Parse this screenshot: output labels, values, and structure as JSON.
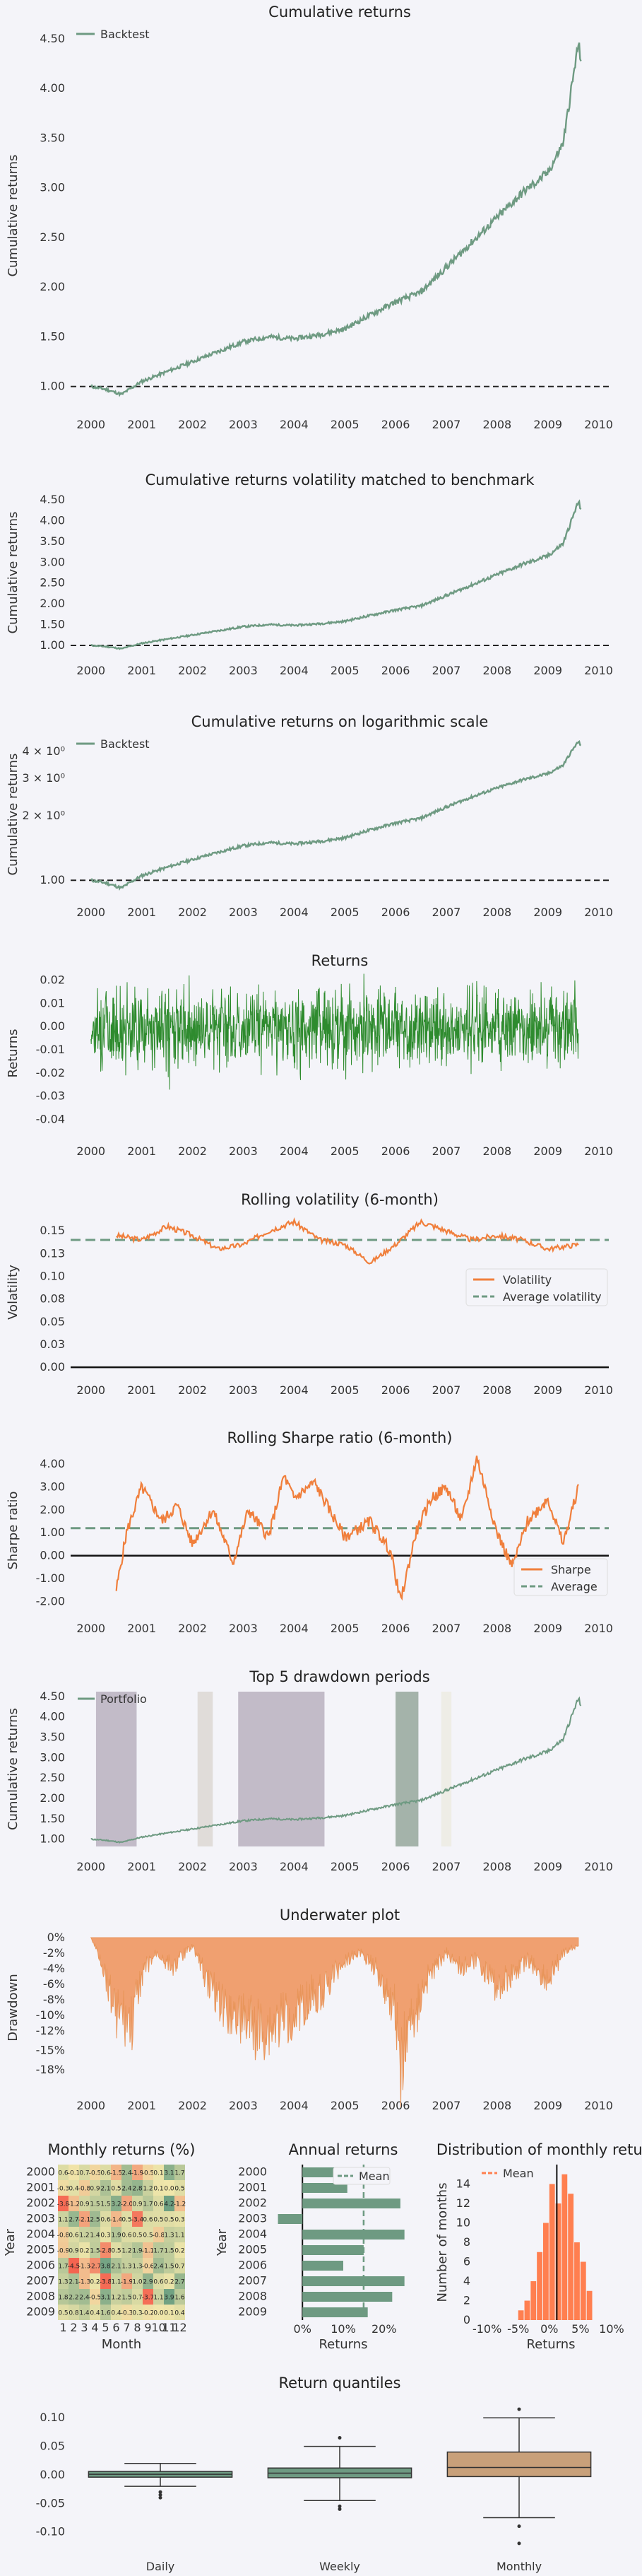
{
  "chart_data": [
    {
      "id": "cum",
      "type": "line",
      "title": "Cumulative returns",
      "ylabel": "Cumulative returns",
      "xlim": [
        1999.6,
        2010.2
      ],
      "ylim": [
        0.82,
        4.62
      ],
      "yticks": [
        "1.00",
        "1.50",
        "2.00",
        "2.50",
        "3.00",
        "3.50",
        "4.00",
        "4.50"
      ],
      "ytick_values": [
        1.0,
        1.5,
        2.0,
        2.5,
        3.0,
        3.5,
        4.0,
        4.5
      ],
      "xticks": [
        "2000",
        "2001",
        "2002",
        "2003",
        "2004",
        "2005",
        "2006",
        "2007",
        "2008",
        "2009",
        "2010"
      ],
      "legend": [
        "Backtest"
      ],
      "legend_position": "top-left",
      "baseline": 1.0,
      "color": "#6e9a82",
      "series_x": [
        2000.0,
        2000.3,
        2000.6,
        2001.0,
        2001.5,
        2002.0,
        2002.5,
        2003.0,
        2003.5,
        2004.0,
        2004.5,
        2005.0,
        2005.5,
        2006.0,
        2006.5,
        2007.0,
        2007.5,
        2008.0,
        2008.5,
        2009.0,
        2009.3,
        2009.6,
        2009.65
      ],
      "series_y": [
        1.0,
        0.97,
        0.92,
        1.05,
        1.15,
        1.25,
        1.35,
        1.45,
        1.5,
        1.48,
        1.52,
        1.58,
        1.72,
        1.85,
        1.95,
        2.2,
        2.45,
        2.7,
        2.95,
        3.15,
        3.45,
        4.45,
        4.3
      ]
    },
    {
      "id": "volm",
      "type": "line",
      "title": "Cumulative returns volatility matched to benchmark",
      "ylabel": "Cumulative returns",
      "xlim": [
        1999.6,
        2010.2
      ],
      "ylim": [
        0.88,
        4.62
      ],
      "yticks": [
        "1.00",
        "1.50",
        "2.00",
        "2.50",
        "3.00",
        "3.50",
        "4.00",
        "4.50"
      ],
      "ytick_values": [
        1.0,
        1.5,
        2.0,
        2.5,
        3.0,
        3.5,
        4.0,
        4.5
      ],
      "xticks": [
        "2000",
        "2001",
        "2002",
        "2003",
        "2004",
        "2005",
        "2006",
        "2007",
        "2008",
        "2009",
        "2010"
      ],
      "baseline": 1.0,
      "color": "#6e9a82"
    },
    {
      "id": "log",
      "type": "line",
      "title": "Cumulative returns on logarithmic scale",
      "ylabel": "Cumulative returns",
      "xlim": [
        1999.6,
        2010.2
      ],
      "log_scale": true,
      "ylim": [
        0.88,
        4.7
      ],
      "yticks": [
        "1.00",
        "2 × 10⁰",
        "3 × 10⁰",
        "4 × 10⁰"
      ],
      "ytick_values": [
        1.0,
        2.0,
        3.0,
        4.0
      ],
      "xticks": [
        "2000",
        "2001",
        "2002",
        "2003",
        "2004",
        "2005",
        "2006",
        "2007",
        "2008",
        "2009",
        "2010"
      ],
      "legend": [
        "Backtest"
      ],
      "legend_position": "top-left",
      "baseline": 1.0,
      "color": "#6e9a82"
    },
    {
      "id": "ret",
      "type": "line",
      "title": "Returns",
      "ylabel": "Returns",
      "xlim": [
        1999.6,
        2010.2
      ],
      "ylim": [
        -0.045,
        0.022
      ],
      "yticks": [
        "0.02",
        "0.01",
        "0.00",
        "-0.01",
        "-0.02",
        "-0.03",
        "-0.04"
      ],
      "ytick_values": [
        0.02,
        0.01,
        0.0,
        -0.01,
        -0.02,
        -0.03,
        -0.04
      ],
      "xticks": [
        "2000",
        "2001",
        "2002",
        "2003",
        "2004",
        "2005",
        "2006",
        "2007",
        "2008",
        "2009",
        "2010"
      ],
      "color": "#2e8b2e"
    },
    {
      "id": "rvol",
      "type": "line",
      "title": "Rolling volatility (6-month)",
      "ylabel": "Volatility",
      "xlim": [
        1999.6,
        2010.2
      ],
      "ylim": [
        -0.003,
        0.168
      ],
      "yticks": [
        "0.15",
        "0.13",
        "0.10",
        "0.08",
        "0.05",
        "0.03",
        "0.00"
      ],
      "ytick_values": [
        0.15,
        0.125,
        0.1,
        0.075,
        0.05,
        0.025,
        0.0
      ],
      "xticks": [
        "2000",
        "2001",
        "2002",
        "2003",
        "2004",
        "2005",
        "2006",
        "2007",
        "2008",
        "2009",
        "2010"
      ],
      "legend": [
        "Volatility",
        "Average volatility"
      ],
      "legend_position": "lower-right",
      "average": 0.14,
      "series_x": [
        2000.5,
        2001.0,
        2001.5,
        2002.0,
        2002.5,
        2003.0,
        2003.5,
        2004.0,
        2004.5,
        2005.0,
        2005.5,
        2006.0,
        2006.5,
        2007.0,
        2007.5,
        2008.0,
        2008.5,
        2009.0,
        2009.6
      ],
      "series_y": [
        0.145,
        0.14,
        0.155,
        0.145,
        0.13,
        0.135,
        0.15,
        0.16,
        0.14,
        0.135,
        0.115,
        0.135,
        0.16,
        0.15,
        0.14,
        0.145,
        0.14,
        0.13,
        0.135
      ],
      "color": "#f07f3c"
    },
    {
      "id": "rsh",
      "type": "line",
      "title": "Rolling Sharpe ratio (6-month)",
      "ylabel": "Sharpe ratio",
      "xlim": [
        1999.6,
        2010.2
      ],
      "ylim": [
        -2.3,
        4.5
      ],
      "yticks": [
        "4.00",
        "3.00",
        "2.00",
        "1.00",
        "0.00",
        "-1.00",
        "-2.00"
      ],
      "ytick_values": [
        4,
        3,
        2,
        1,
        0,
        -1,
        -2
      ],
      "xticks": [
        "2000",
        "2001",
        "2002",
        "2003",
        "2004",
        "2005",
        "2006",
        "2007",
        "2008",
        "2009",
        "2010"
      ],
      "legend": [
        "Sharpe",
        "Average"
      ],
      "legend_position": "lower-right",
      "average": 1.2,
      "series_x": [
        2000.5,
        2000.7,
        2001.0,
        2001.4,
        2001.7,
        2002.0,
        2002.4,
        2002.8,
        2003.1,
        2003.5,
        2003.8,
        2004.0,
        2004.4,
        2004.7,
        2005.0,
        2005.5,
        2005.9,
        2006.1,
        2006.4,
        2006.7,
        2007.0,
        2007.3,
        2007.6,
        2008.0,
        2008.3,
        2008.6,
        2009.0,
        2009.3,
        2009.6
      ],
      "series_y": [
        -1.5,
        1.0,
        3.0,
        1.5,
        2.2,
        0.5,
        2.0,
        -0.3,
        2.0,
        0.8,
        3.5,
        2.5,
        3.2,
        2.0,
        0.8,
        1.5,
        0.2,
        -2.0,
        1.0,
        2.5,
        3.0,
        1.5,
        4.3,
        1.0,
        -0.5,
        1.5,
        2.5,
        0.5,
        3.0
      ],
      "color": "#f07f3c"
    },
    {
      "id": "dd",
      "type": "line",
      "title": "Top 5 drawdown periods",
      "ylabel": "Cumulative returns",
      "xlim": [
        1999.6,
        2010.2
      ],
      "ylim": [
        0.82,
        4.62
      ],
      "yticks": [
        "1.00",
        "1.50",
        "2.00",
        "2.50",
        "3.00",
        "3.50",
        "4.00",
        "4.50"
      ],
      "ytick_values": [
        1.0,
        1.5,
        2.0,
        2.5,
        3.0,
        3.5,
        4.0,
        4.5
      ],
      "xticks": [
        "2000",
        "2001",
        "2002",
        "2003",
        "2004",
        "2005",
        "2006",
        "2007",
        "2008",
        "2009",
        "2010"
      ],
      "legend": [
        "Portfolio"
      ],
      "legend_position": "top-left",
      "drawdown_periods": [
        {
          "start": 2000.1,
          "end": 2000.9,
          "color": "#b8b0c0"
        },
        {
          "start": 2002.1,
          "end": 2002.4,
          "color": "#dcd7d3"
        },
        {
          "start": 2002.9,
          "end": 2004.6,
          "color": "#b8b0c0"
        },
        {
          "start": 2006.0,
          "end": 2006.45,
          "color": "#95a79c"
        },
        {
          "start": 2006.9,
          "end": 2007.1,
          "color": "#ecebe3"
        }
      ],
      "color": "#6e9a82"
    },
    {
      "id": "uw",
      "type": "area",
      "title": "Underwater plot",
      "ylabel": "Drawdown",
      "xlim": [
        1999.6,
        2010.2
      ],
      "ylim": [
        -19,
        1
      ],
      "yticks": [
        "0%",
        "-2%",
        "-4%",
        "-6%",
        "-8%",
        "-10%",
        "-12%",
        "-15%",
        "-18%"
      ],
      "ytick_values": [
        0,
        -2,
        -4,
        -6,
        -8,
        -10,
        -12,
        -14.5,
        -17
      ],
      "xticks": [
        "2000",
        "2001",
        "2002",
        "2003",
        "2004",
        "2005",
        "2006",
        "2007",
        "2008",
        "2009",
        "2010"
      ],
      "series_x": [
        2000.0,
        2000.2,
        2000.5,
        2000.8,
        2001.0,
        2001.3,
        2001.6,
        2002.0,
        2002.3,
        2002.6,
        2003.0,
        2003.3,
        2003.6,
        2004.0,
        2004.3,
        2004.6,
        2005.0,
        2005.3,
        2005.6,
        2006.0,
        2006.1,
        2006.3,
        2006.6,
        2007.0,
        2007.3,
        2007.6,
        2008.0,
        2008.3,
        2008.6,
        2009.0,
        2009.3,
        2009.6
      ],
      "series_y": [
        0,
        -3,
        -10,
        -12,
        -5,
        -2,
        -4,
        -1,
        -6,
        -9,
        -11,
        -13,
        -12,
        -10,
        -8,
        -7,
        -3,
        -2,
        -4,
        -10,
        -17,
        -12,
        -6,
        -2,
        -4,
        -3,
        -7,
        -5,
        -3,
        -6,
        -2,
        -1
      ],
      "color": "#f0a070"
    },
    {
      "id": "heat",
      "type": "heatmap",
      "title": "Monthly returns (%)",
      "xlabel": "Month",
      "ylabel": "Year",
      "years": [
        "2000",
        "2001",
        "2002",
        "2003",
        "2004",
        "2005",
        "2006",
        "2007",
        "2008",
        "2009"
      ],
      "months": [
        "1",
        "2",
        "3",
        "4",
        "5",
        "6",
        "7",
        "8",
        "9",
        "10",
        "11",
        "12"
      ],
      "values": [
        [
          0.6,
          -0.1,
          0.7,
          -0.5,
          0.6,
          -1.5,
          2.4,
          -1.9,
          -0.5,
          0.1,
          3.1,
          1.7
        ],
        [
          -0.3,
          0.4,
          -0.8,
          0.9,
          2.1,
          0.5,
          2.4,
          2.8,
          1.2,
          0.1,
          0.0,
          0.5
        ],
        [
          -3.8,
          -1.2,
          0.9,
          1.5,
          1.5,
          3.2,
          -2.0,
          0.9,
          1.7,
          0.6,
          4.2,
          -1.2
        ],
        [
          1.1,
          2.7,
          -2.1,
          2.5,
          0.6,
          -1.4,
          0.5,
          -3.4,
          0.6,
          0.5,
          0.5,
          0.3
        ],
        [
          -0.8,
          0.6,
          1.2,
          1.4,
          0.3,
          1.9,
          0.6,
          0.5,
          0.5,
          -0.8,
          1.3,
          1.1
        ],
        [
          -0.9,
          0.9,
          0.2,
          1.5,
          -2.8,
          0.5,
          1.2,
          1.9,
          -1.1,
          1.7,
          1.5,
          0.2
        ],
        [
          1.7,
          -4.5,
          -1.3,
          -2.7,
          3.8,
          2.1,
          1.3,
          1.3,
          -0.6,
          2.4,
          1.5,
          0.7
        ],
        [
          1.3,
          2.1,
          -1.3,
          0.2,
          -3.8,
          1.1,
          -1.9,
          1.0,
          2.9,
          0.6,
          0.2,
          2.7
        ],
        [
          1.8,
          2.2,
          2.4,
          -0.5,
          3.1,
          1.2,
          1.5,
          0.7,
          -3.7,
          1.1,
          3.9,
          1.6
        ],
        [
          0.5,
          0.8,
          1.4,
          0.4,
          1.6,
          0.4,
          -0.3,
          0.3,
          -0.2,
          0.0,
          0.1,
          0.4
        ]
      ]
    },
    {
      "id": "annual",
      "type": "bar",
      "title": "Annual returns",
      "xlabel": "Returns",
      "ylabel": "Year",
      "categories": [
        "2000",
        "2001",
        "2002",
        "2003",
        "2004",
        "2005",
        "2006",
        "2007",
        "2008",
        "2009"
      ],
      "values": [
        8,
        11,
        24,
        -6,
        25,
        15,
        10,
        25,
        22,
        16
      ],
      "mean": 15,
      "xlim": [
        -8,
        28
      ],
      "xticks": [
        "0%",
        "10%",
        "20%"
      ],
      "xtick_values": [
        0,
        10,
        20
      ],
      "legend": [
        "Mean"
      ],
      "color": "#6e9a82"
    },
    {
      "id": "dist",
      "type": "bar",
      "title": "Distribution of monthly returns",
      "xlabel": "Returns",
      "ylabel": "Number of months",
      "xlim": [
        -12,
        12.5
      ],
      "ylim": [
        0,
        16
      ],
      "xticks": [
        "-10%",
        "-5%",
        "0%",
        "5%",
        "10%"
      ],
      "xtick_values": [
        -10,
        -5,
        0,
        5,
        10
      ],
      "yticks": [
        "0",
        "2",
        "4",
        "6",
        "8",
        "10",
        "12",
        "14"
      ],
      "ytick_values": [
        0,
        2,
        4,
        6,
        8,
        10,
        12,
        14
      ],
      "bin_edges": [
        -5,
        -4,
        -3,
        -2,
        -1,
        0,
        1,
        2,
        3,
        4,
        5,
        6,
        7
      ],
      "counts": [
        1,
        2,
        4,
        7,
        10,
        14,
        12,
        15,
        13,
        8,
        6,
        3
      ],
      "mean": 1.2,
      "legend": [
        "Mean"
      ],
      "color": "#ff7f50"
    },
    {
      "id": "quant",
      "type": "box",
      "title": "Return quantiles",
      "categories": [
        "Daily",
        "Weekly",
        "Monthly"
      ],
      "ylim": [
        -0.135,
        0.125
      ],
      "yticks": [
        "0.10",
        "0.05",
        "0.00",
        "-0.05",
        "-0.10"
      ],
      "ytick_values": [
        0.1,
        0.05,
        0.0,
        -0.05,
        -0.1
      ],
      "boxes": [
        {
          "q1": -0.004,
          "median": 0.001,
          "q3": 0.006,
          "whislo": -0.02,
          "whishi": 0.02,
          "fliers": [
            -0.03,
            -0.035,
            -0.04
          ],
          "color": "#6e9a82"
        },
        {
          "q1": -0.005,
          "median": 0.003,
          "q3": 0.012,
          "whislo": -0.045,
          "whishi": 0.05,
          "fliers": [
            0.065,
            -0.055,
            -0.06
          ],
          "color": "#6e9a82"
        },
        {
          "q1": -0.003,
          "median": 0.013,
          "q3": 0.04,
          "whislo": -0.075,
          "whishi": 0.1,
          "fliers": [
            0.115,
            -0.09,
            -0.12
          ],
          "color": "#c8a07a"
        }
      ]
    }
  ]
}
